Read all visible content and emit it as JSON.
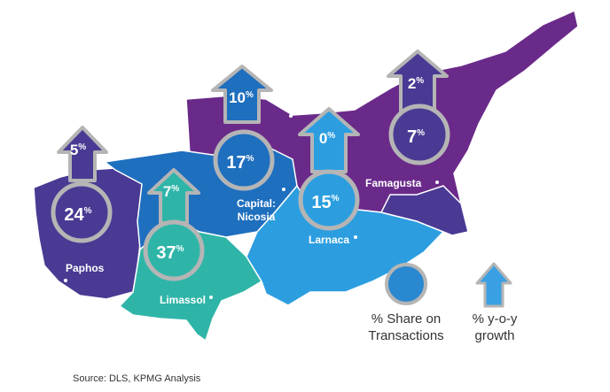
{
  "colors": {
    "paphos": "#4a3a94",
    "limassol": "#2fb5a8",
    "nicosia": "#1f6fbf",
    "larnaca": "#2c9ee0",
    "famagusta": "#4a3a94",
    "north": "#6a2a8a",
    "ring": "#b5b5b5",
    "legend_circle": "#2a88d0",
    "legend_arrow": "#3aa0e4"
  },
  "districts": [
    {
      "id": "paphos",
      "label": "Paphos",
      "share": "24",
      "growth": "5"
    },
    {
      "id": "limassol",
      "label": "Limassol",
      "share": "37",
      "growth": "7"
    },
    {
      "id": "nicosia",
      "label_line1": "Capital:",
      "label_line2": "Nicosia",
      "share": "17",
      "growth": "10"
    },
    {
      "id": "larnaca",
      "label": "Larnaca",
      "share": "15",
      "growth": "0"
    },
    {
      "id": "famagusta",
      "label": "Famagusta",
      "share": "7",
      "growth": "2"
    }
  ],
  "percent_symbol": "%",
  "legend": {
    "share_line1": "% Share on",
    "share_line2": "Transactions",
    "growth_line1": "% y-o-y",
    "growth_line2": "growth"
  },
  "source": "Source: DLS, KPMG Analysis"
}
